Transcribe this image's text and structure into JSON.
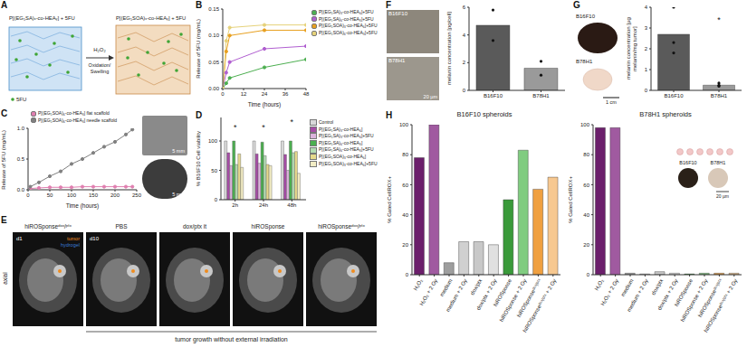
{
  "panels": [
    "A",
    "B",
    "C",
    "D",
    "E",
    "F",
    "G",
    "H"
  ],
  "diagram": {
    "left_label": "P[(EG₅SA)ₓ-co-HEAᵧ] + 5FU",
    "right_label": "P[(EG₅SOA)ₓ-co-HEAᵧ] + 5FU",
    "arrow_top": "H₂O₂",
    "arrow_bottom": [
      "Oxidation/",
      "Swelling"
    ],
    "drug_label": "5FU"
  },
  "chart_data": [
    {
      "type": "line",
      "x": [
        0,
        2,
        4,
        24,
        48
      ],
      "series": [
        {
          "name": "P[(EG₅SA)₃-co-HEA₆]+5FU",
          "color": "#4caf50",
          "values": [
            0,
            0.01,
            0.02,
            0.04,
            0.055
          ]
        },
        {
          "name": "P[(EG₅SA)₆-co-HEA₃]+5FU",
          "color": "#b05fd0",
          "values": [
            0,
            0.03,
            0.05,
            0.075,
            0.08
          ]
        },
        {
          "name": "P[(EG₅SOA)₃-co-HEA₆]+5FU",
          "color": "#e8a020",
          "values": [
            0,
            0.07,
            0.1,
            0.11,
            0.11
          ]
        },
        {
          "name": "P[(EG₅SOA)₆-co-HEA₃]+5FU",
          "color": "#e6d27a",
          "values": [
            0,
            0.09,
            0.115,
            0.12,
            0.12
          ]
        }
      ],
      "xlabel": "Time (hours)",
      "ylabel": "Release of 5FU (mg/mL)",
      "xlim": [
        0,
        48
      ],
      "xticks": [
        0,
        12,
        24,
        36,
        48
      ],
      "ylim": [
        0,
        0.15
      ],
      "yticks": [
        {
          "value": 0,
          "label": "0.00"
        },
        0.05,
        {
          "value": 0.1,
          "label": "0.10"
        },
        0.15
      ],
      "marker": "circle",
      "grid": false,
      "legend": "right"
    },
    {
      "type": "line",
      "x": [
        0,
        5,
        25,
        50,
        75,
        100,
        125,
        150,
        175,
        200,
        225,
        240
      ],
      "series": [
        {
          "name": "P[(EG₅SOA)₆-co-HEA₃] flat scaffold",
          "color": "#e07fb0",
          "values": [
            0,
            0.02,
            0.03,
            0.04,
            0.04,
            0.04,
            0.05,
            0.05,
            0.05,
            0.05,
            0.05,
            0.05
          ]
        },
        {
          "name": "P[(EG₅SOA)₆-co-HEA₃] needle scaffold",
          "color": "#808080",
          "values": [
            0,
            0.05,
            0.12,
            0.22,
            0.3,
            0.42,
            0.5,
            0.6,
            0.7,
            0.78,
            0.9,
            0.98
          ]
        }
      ],
      "xlabel": "Time (hours)",
      "ylabel": "Release of 5FU (mg/mL)",
      "xlim": [
        0,
        250
      ],
      "xticks": [
        0,
        50,
        100,
        150,
        200,
        250
      ],
      "ylim": [
        0,
        1
      ],
      "yticks": [
        {
          "value": 0,
          "label": "0.0"
        },
        0.5,
        {
          "value": 1,
          "label": "1.0"
        }
      ],
      "marker": "circle",
      "grid": false,
      "legend": "top"
    },
    {
      "type": "bar",
      "categories": [
        "2h",
        "24h",
        "48h"
      ],
      "series": [
        {
          "name": "Control",
          "color": "#d9d9d9",
          "values": [
            100,
            100,
            100
          ]
        },
        {
          "name": "P[(EG₅SA)₃-co-HEA₆]",
          "color": "#a64ca6",
          "values": [
            80,
            78,
            77
          ]
        },
        {
          "name": "P[(EG₅SA)₃-co-HEA₆]+5FU",
          "color": "#dcb3dc",
          "values": [
            58,
            62,
            50
          ]
        },
        {
          "name": "P[(EG₅SA)₆-co-HEA₃]",
          "color": "#4caf50",
          "values": [
            100,
            98,
            100
          ]
        },
        {
          "name": "P[(EG₅SA)₆-co-HEA₃]+5FU",
          "color": "#b3dcb3",
          "values": [
            60,
            75,
            80
          ]
        },
        {
          "name": "P[(EG₅SOA)₃-co-HEA₆]",
          "color": "#e6d98c",
          "values": [
            78,
            60,
            82
          ]
        },
        {
          "name": "P[(EG₅SOA)₃-co-HEA₆]+5FU",
          "color": "#f2ecc4",
          "values": [
            55,
            58,
            45
          ]
        }
      ],
      "ylabel": "% B16F10 Cell viability",
      "ylim": [
        0,
        140
      ],
      "yticks": [
        0,
        50,
        100
      ],
      "annotations": [
        {
          "x": "2h",
          "y": 124,
          "text": "*"
        },
        {
          "x": "24h",
          "y": 124,
          "text": "*"
        },
        {
          "x": "48h",
          "y": 132,
          "text": "*"
        }
      ],
      "grid": false,
      "legend": "right"
    },
    {
      "type": "bar",
      "categories": [
        "B16F10",
        "B78H1"
      ],
      "values": [
        4.7,
        1.6
      ],
      "points": [
        [
          5.8,
          3.6
        ],
        [
          2.1,
          1.1
        ]
      ],
      "colors": [
        "#5a5a5a",
        "#9a9a9a"
      ],
      "ylabel": "melanin concentration [pg/cell]",
      "ylim": [
        0,
        6
      ],
      "yticks": [
        0,
        2,
        4,
        6
      ],
      "grid": false
    },
    {
      "type": "bar",
      "categories": [
        "B16F10",
        "B78H1"
      ],
      "values": [
        2.7,
        0.25
      ],
      "points": [
        [
          4,
          2.3,
          1.8
        ],
        [
          0.35,
          0.2,
          0.25
        ]
      ],
      "colors": [
        "#5a5a5a",
        "#9a9a9a"
      ],
      "ylabel": "melanin concentration [µg melanin/mg tumor]",
      "ylim": [
        0,
        4
      ],
      "yticks": [
        0,
        1,
        2,
        3,
        4
      ],
      "annotations": [
        {
          "x": "B78H1",
          "y": 3.4,
          "text": "*"
        }
      ],
      "grid": false
    },
    {
      "type": "bar",
      "title": "B16F10 spheroids",
      "categories": [
        "H₂O₂",
        "H₂O₂ + 2 Gy",
        "medium",
        "medium + 2 Gy",
        "dox/ptx",
        "dox/ptx + 2 Gy",
        "hiROSponse",
        "hiROSponse + 2 Gy",
        "hiROSponseᵈᵒˣ/ᵖᵗˣ",
        "hiROSponseᵈᵒˣ/ᵖᵗˣ + 2 Gy"
      ],
      "values": [
        78,
        100,
        8,
        22,
        22,
        20,
        50,
        83,
        57,
        65
      ],
      "colors": [
        "#6b1f6b",
        "#a05aa0",
        "#9e9e9e",
        "#d0d0d0",
        "#c8c8c8",
        "#e0e0e0",
        "#3a9a3a",
        "#80cc80",
        "#f0a040",
        "#f7c890"
      ],
      "ylabel": "% Gated CellROX+",
      "ylim": [
        0,
        100
      ],
      "yticks": [
        0,
        20,
        40,
        60,
        80,
        100
      ],
      "grid": false
    },
    {
      "type": "bar",
      "title": "B78H1 spheroids",
      "categories": [
        "H₂O₂",
        "H₂O₂ + 2 Gy",
        "medium",
        "medium + 2 Gy",
        "dox/ptx",
        "dox/ptx + 2 Gy",
        "hiROSponse",
        "hiROSponse + 2 Gy",
        "hiROSponseᵈᵒˣ/ᵖᵗˣ",
        "hiROSponseᵈᵒˣ/ᵖᵗˣ + 2 Gy"
      ],
      "values": [
        98,
        98,
        1,
        0.5,
        2,
        1,
        0.5,
        1,
        1,
        1
      ],
      "colors": [
        "#6b1f6b",
        "#a05aa0",
        "#9e9e9e",
        "#d0d0d0",
        "#c8c8c8",
        "#e0e0e0",
        "#3a9a3a",
        "#80cc80",
        "#f0a040",
        "#f7c890"
      ],
      "ylabel": "% Gated CellROX+",
      "ylim": [
        0,
        100
      ],
      "yticks": [
        0,
        20,
        40,
        60,
        80,
        100
      ],
      "grid": false
    }
  ],
  "photos_c": {
    "scale_bars": [
      "5 mm",
      "5 mm"
    ]
  },
  "mri_e": {
    "view": "axial",
    "frames": [
      {
        "label": "hiROSponseᵈᵒˣ/ᵖᵗˣ",
        "day": "d1",
        "marks": [
          {
            "text": "tumor",
            "color": "#f08c1e"
          },
          {
            "text": "hydrogel",
            "color": "#3a7bd5"
          }
        ]
      },
      {
        "label": "PBS",
        "day": "d10"
      },
      {
        "label": "dox/ptx it"
      },
      {
        "label": "hiROSponse"
      },
      {
        "label": "hiROSponseᵈᵒˣ/ᵖᵗˣ"
      }
    ],
    "caption": "tumor growth without external irradiation"
  },
  "photos_f": {
    "labels": [
      "B16F10",
      "B78H1"
    ],
    "scale_bar": "20 µm"
  },
  "photos_g": {
    "labels": [
      "B16F10",
      "B78H1"
    ],
    "scale_bar": "1 cm"
  },
  "inset_h": {
    "labels": [
      "B16F10",
      "B78H1"
    ],
    "scale_bar": "20 µm"
  }
}
